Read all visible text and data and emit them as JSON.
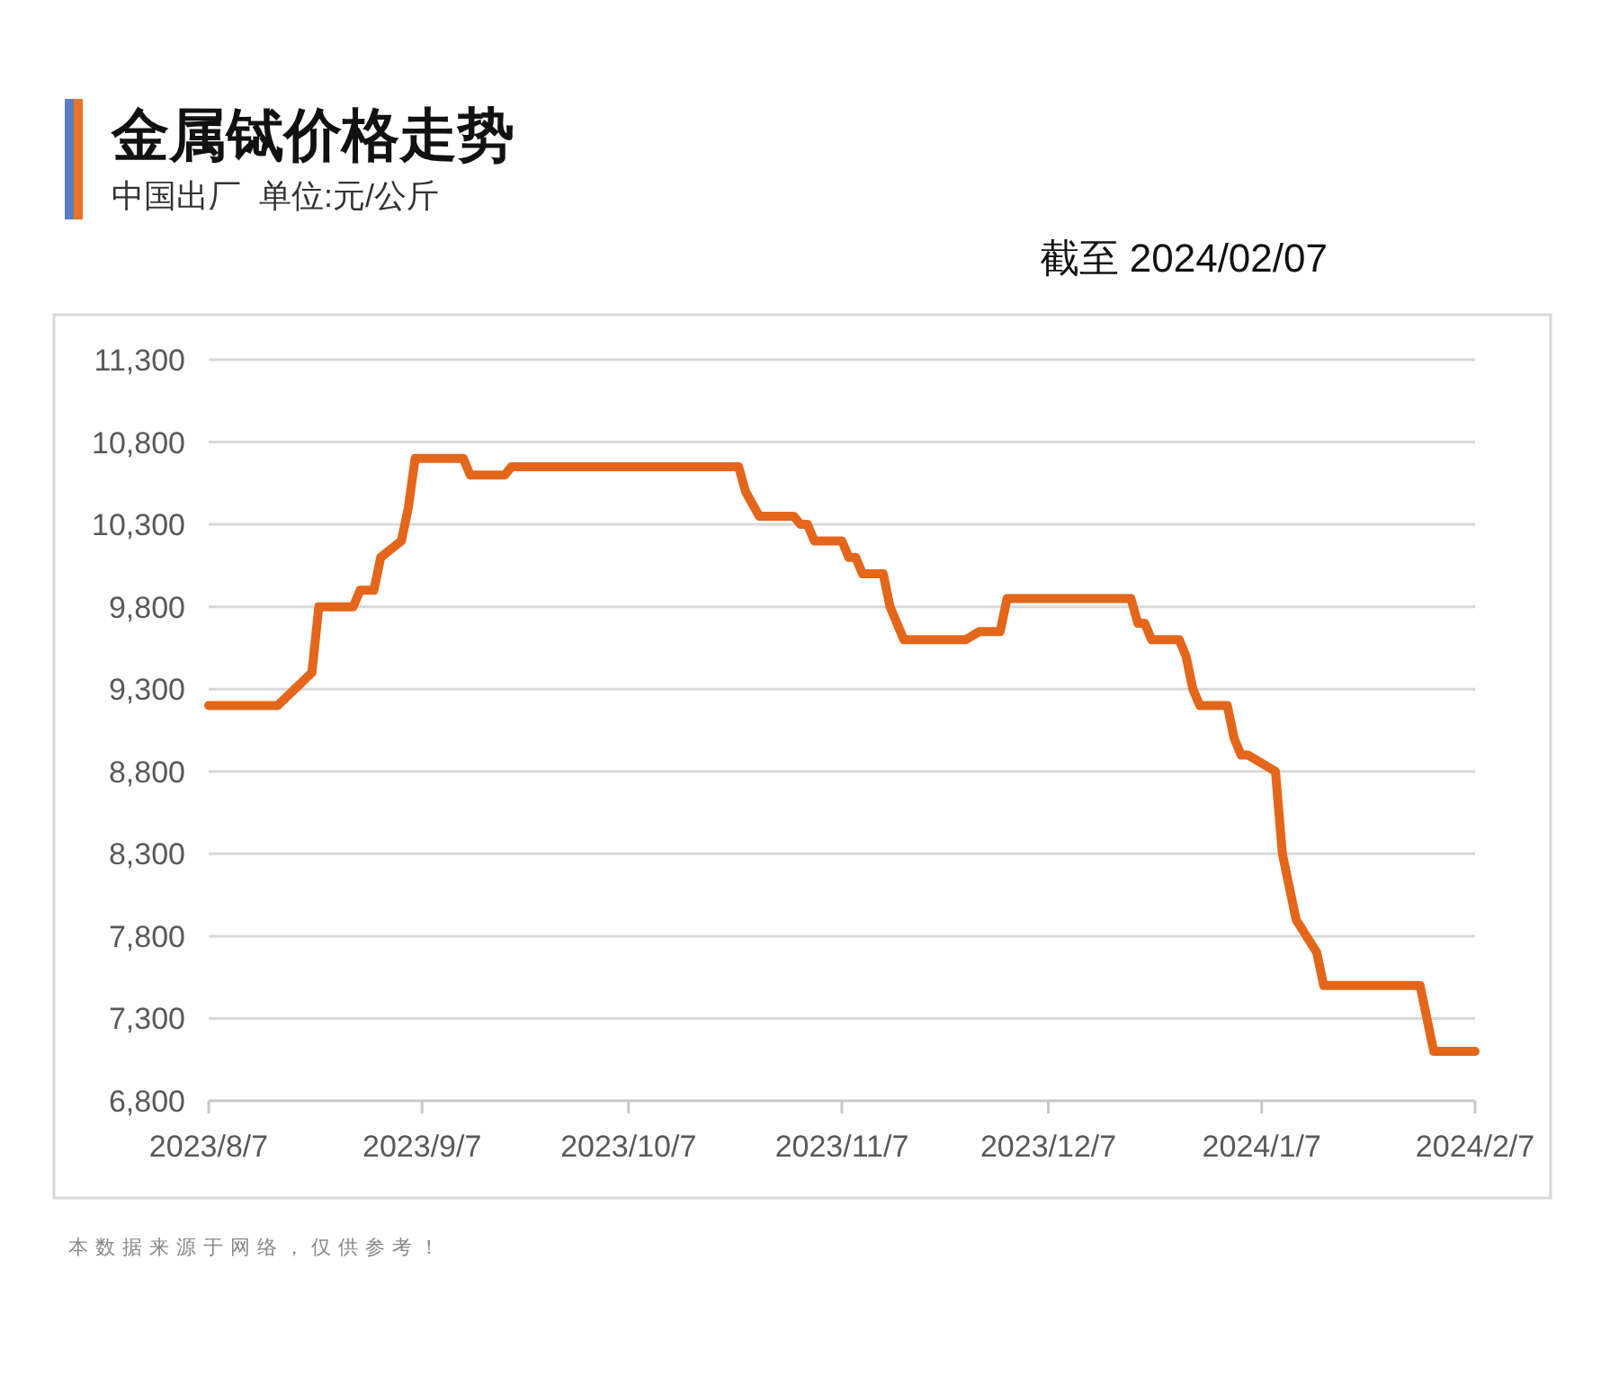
{
  "chart_data": {
    "type": "line",
    "title": "金属铽价格走势",
    "subtitle": "中国出厂  单位:元/公斤",
    "annotations": [
      "截至 2024/02/07",
      "本数据来源于网络，仅供参考！"
    ],
    "x": [
      "2023-08-07",
      "2023-08-17",
      "2023-08-22",
      "2023-08-23",
      "2023-08-28",
      "2023-08-29",
      "2023-08-31",
      "2023-09-01",
      "2023-09-04",
      "2023-09-05",
      "2023-09-06",
      "2023-09-13",
      "2023-09-14",
      "2023-09-19",
      "2023-09-20",
      "2023-10-23",
      "2023-10-24",
      "2023-10-26",
      "2023-10-31",
      "2023-11-01",
      "2023-11-02",
      "2023-11-03",
      "2023-11-07",
      "2023-11-08",
      "2023-11-09",
      "2023-11-10",
      "2023-11-13",
      "2023-11-14",
      "2023-11-16",
      "2023-11-25",
      "2023-11-27",
      "2023-11-30",
      "2023-12-01",
      "2023-12-19",
      "2023-12-20",
      "2023-12-21",
      "2023-12-22",
      "2023-12-26",
      "2023-12-27",
      "2023-12-28",
      "2023-12-29",
      "2024-01-02",
      "2024-01-03",
      "2024-01-04",
      "2024-01-05",
      "2024-01-09",
      "2024-01-10",
      "2024-01-12",
      "2024-01-15",
      "2024-01-16",
      "2024-01-30",
      "2024-02-01",
      "2024-02-07"
    ],
    "series": [
      {
        "color": "#e4661a",
        "values": [
          9200,
          9200,
          9400,
          9800,
          9800,
          9900,
          9900,
          10100,
          10200,
          10400,
          10700,
          10700,
          10600,
          10600,
          10650,
          10650,
          10500,
          10350,
          10350,
          10300,
          10300,
          10200,
          10200,
          10100,
          10100,
          10000,
          10000,
          9800,
          9600,
          9600,
          9650,
          9650,
          9850,
          9850,
          9700,
          9700,
          9600,
          9600,
          9500,
          9300,
          9200,
          9200,
          9000,
          8900,
          8900,
          8800,
          8300,
          7900,
          7700,
          7500,
          7500,
          7100,
          7100
        ]
      }
    ],
    "xlim": [
      "2023-08-07",
      "2024-02-07"
    ],
    "xticks": [
      {
        "value": "2023-08-07",
        "label": "2023/8/7"
      },
      {
        "value": "2023-09-07",
        "label": "2023/9/7"
      },
      {
        "value": "2023-10-07",
        "label": "2023/10/7"
      },
      {
        "value": "2023-11-07",
        "label": "2023/11/7"
      },
      {
        "value": "2023-12-07",
        "label": "2023/12/7"
      },
      {
        "value": "2024-01-07",
        "label": "2024/1/7"
      },
      {
        "value": "2024-02-07",
        "label": "2024/2/7"
      }
    ],
    "ylim": [
      6800,
      11300
    ],
    "yticks": [
      {
        "value": 6800,
        "label": "6,800"
      },
      {
        "value": 7300,
        "label": "7,300"
      },
      {
        "value": 7800,
        "label": "7,800"
      },
      {
        "value": 8300,
        "label": "8,300"
      },
      {
        "value": 8800,
        "label": "8,800"
      },
      {
        "value": 9300,
        "label": "9,300"
      },
      {
        "value": 9800,
        "label": "9,800"
      },
      {
        "value": 10300,
        "label": "10,300"
      },
      {
        "value": 10800,
        "label": "10,800"
      },
      {
        "value": 11300,
        "label": "11,300"
      }
    ],
    "grid": "y",
    "line_style": "solid"
  }
}
